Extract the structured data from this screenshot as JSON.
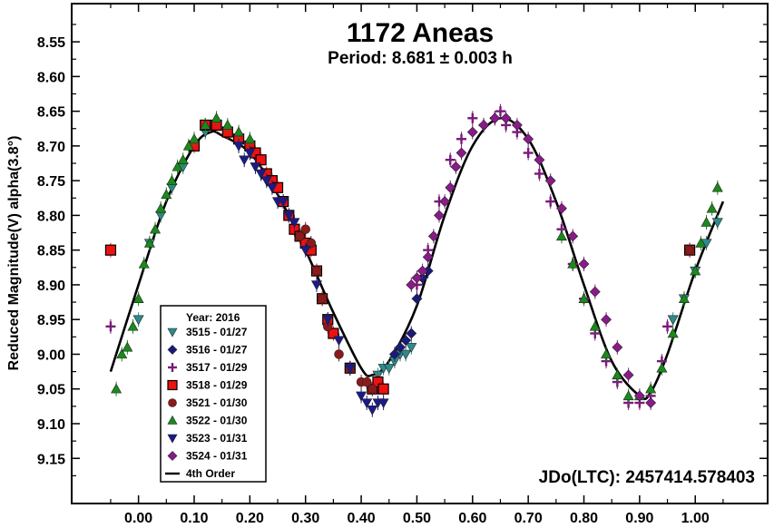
{
  "chart_data": {
    "type": "scatter",
    "title": "1172 Aneas",
    "subtitle": "Period: 8.681 ± 0.003 h",
    "ylabel": "Reduced Magnitude(V) alpha(3.8°)",
    "xlabel": "",
    "annotation": "JDo(LTC): 2457414.578403",
    "xlim": [
      -0.12,
      1.13
    ],
    "ylim": [
      9.215,
      8.495
    ],
    "y_inverted": true,
    "x_ticks": [
      0.0,
      0.1,
      0.2,
      0.3,
      0.4,
      0.5,
      0.6,
      0.7,
      0.8,
      0.9,
      1.0
    ],
    "x_tick_labels": [
      "0.00",
      "0.10",
      "0.20",
      "0.30",
      "0.40",
      "0.50",
      "0.60",
      "0.70",
      "0.80",
      "0.90",
      "1.00"
    ],
    "y_ticks": [
      8.55,
      8.6,
      8.65,
      8.7,
      8.75,
      8.8,
      8.85,
      8.9,
      8.95,
      9.0,
      9.05,
      9.1,
      9.15
    ],
    "y_tick_labels": [
      "8.55",
      "8.60",
      "8.65",
      "8.70",
      "8.75",
      "8.80",
      "8.85",
      "8.90",
      "8.95",
      "9.00",
      "9.05",
      "9.10",
      "9.15"
    ],
    "grid": false,
    "legend": {
      "placement": "bottom-left",
      "title": "Year: 2016",
      "entries": [
        "3515 - 01/27",
        "3516 - 01/27",
        "3517 - 01/29",
        "3518 - 01/29",
        "3521 - 01/30",
        "3522 - 01/30",
        "3523 - 01/31",
        "3524 - 01/31",
        "4th Order"
      ]
    },
    "series": [
      {
        "name": "3515 - 01/27",
        "marker": "triangle-down",
        "color": "#2e8b8b",
        "x": [
          0.0,
          0.02,
          0.04,
          0.06,
          0.08,
          0.1,
          0.12,
          0.14,
          0.16,
          0.18,
          0.2,
          0.43,
          0.44,
          0.45,
          0.46,
          0.47,
          0.48,
          0.49,
          0.96,
          0.98,
          1.0,
          1.02,
          1.04
        ],
        "y": [
          8.95,
          8.84,
          8.8,
          8.76,
          8.73,
          8.7,
          8.68,
          8.67,
          8.68,
          8.69,
          8.7,
          9.03,
          9.02,
          9.02,
          9.01,
          9.0,
          9.0,
          8.99,
          8.95,
          8.92,
          8.88,
          8.84,
          8.81
        ]
      },
      {
        "name": "3516 - 01/27",
        "marker": "diamond",
        "color": "#1a1a7a",
        "x": [
          0.46,
          0.47,
          0.48,
          0.49,
          0.5,
          0.51,
          0.52
        ],
        "y": [
          9.0,
          8.99,
          8.98,
          8.97,
          8.92,
          8.89,
          8.88
        ]
      },
      {
        "name": "3517 - 01/29",
        "marker": "plus",
        "color": "#7a1a7a",
        "x": [
          -0.05,
          0.5,
          0.52,
          0.54,
          0.56,
          0.58,
          0.6,
          0.62,
          0.64,
          0.65,
          0.66,
          0.68,
          0.7,
          0.72,
          0.74,
          0.76,
          0.78,
          0.8,
          0.82,
          0.84,
          0.86,
          0.88,
          0.9,
          0.92,
          0.94,
          0.95
        ],
        "y": [
          8.96,
          8.9,
          8.85,
          8.78,
          8.72,
          8.69,
          8.66,
          8.67,
          8.66,
          8.65,
          8.67,
          8.68,
          8.71,
          8.74,
          8.78,
          8.82,
          8.87,
          8.92,
          8.97,
          9.01,
          9.04,
          9.07,
          9.07,
          9.06,
          9.01,
          8.96
        ]
      },
      {
        "name": "3518 - 01/29",
        "marker": "square",
        "color": "#ee1111",
        "x": [
          -0.05,
          0.1,
          0.12,
          0.14,
          0.16,
          0.18,
          0.2,
          0.21,
          0.22,
          0.23,
          0.24,
          0.25,
          0.26,
          0.27,
          0.28,
          0.29,
          0.3,
          0.31,
          0.32,
          0.33,
          0.34,
          0.35,
          0.38,
          0.42,
          0.43,
          0.44,
          0.99
        ],
        "y": [
          8.85,
          8.7,
          8.67,
          8.67,
          8.68,
          8.69,
          8.7,
          8.71,
          8.72,
          8.74,
          8.75,
          8.76,
          8.78,
          8.8,
          8.82,
          8.83,
          8.84,
          8.85,
          8.88,
          8.92,
          8.95,
          8.97,
          9.02,
          9.05,
          9.04,
          9.05,
          8.85
        ]
      },
      {
        "name": "3521 - 01/30",
        "marker": "circle",
        "color": "#8b1a1a",
        "x": [
          0.29,
          0.3,
          0.31,
          0.32,
          0.33,
          0.34,
          0.36,
          0.38,
          0.4,
          0.41,
          0.42,
          0.99
        ],
        "y": [
          8.83,
          8.82,
          8.84,
          8.88,
          8.92,
          8.96,
          9.0,
          9.02,
          9.04,
          9.04,
          9.05,
          8.85
        ]
      },
      {
        "name": "3522 - 01/30",
        "marker": "triangle-up",
        "color": "#1a8a1a",
        "x": [
          -0.04,
          -0.03,
          -0.02,
          -0.01,
          0.0,
          0.01,
          0.02,
          0.03,
          0.04,
          0.05,
          0.06,
          0.07,
          0.08,
          0.09,
          0.1,
          0.12,
          0.14,
          0.16,
          0.18,
          0.2,
          0.76,
          0.78,
          0.8,
          0.82,
          0.84,
          0.86,
          0.88,
          0.9,
          0.92,
          0.94,
          0.96,
          0.98,
          1.0,
          1.01,
          1.02,
          1.03,
          1.04
        ],
        "y": [
          9.05,
          9.0,
          8.99,
          8.96,
          8.92,
          8.87,
          8.84,
          8.82,
          8.79,
          8.77,
          8.75,
          8.73,
          8.72,
          8.7,
          8.69,
          8.67,
          8.66,
          8.67,
          8.68,
          8.69,
          8.83,
          8.87,
          8.92,
          8.96,
          9.0,
          9.03,
          9.06,
          9.06,
          9.05,
          9.02,
          8.97,
          8.92,
          8.88,
          8.84,
          8.81,
          8.79,
          8.76
        ]
      },
      {
        "name": "3523 - 01/31",
        "marker": "triangle-down",
        "color": "#1a1a8a",
        "x": [
          0.18,
          0.19,
          0.2,
          0.21,
          0.22,
          0.23,
          0.24,
          0.25,
          0.26,
          0.27,
          0.28,
          0.3,
          0.32,
          0.34,
          0.36,
          0.38,
          0.4,
          0.41,
          0.42,
          0.43,
          0.44
        ],
        "y": [
          8.7,
          8.72,
          8.71,
          8.73,
          8.74,
          8.75,
          8.76,
          8.78,
          8.78,
          8.8,
          8.81,
          8.85,
          8.9,
          8.95,
          8.98,
          9.02,
          9.06,
          9.07,
          9.08,
          9.07,
          9.07
        ]
      },
      {
        "name": "3524 - 01/31",
        "marker": "diamond",
        "color": "#8a1a8a",
        "x": [
          0.49,
          0.5,
          0.51,
          0.52,
          0.53,
          0.54,
          0.55,
          0.56,
          0.57,
          0.58,
          0.6,
          0.62,
          0.64,
          0.66,
          0.68,
          0.7,
          0.72,
          0.74,
          0.76,
          0.78,
          0.8,
          0.82,
          0.84,
          0.86,
          0.88,
          0.9,
          0.92
        ],
        "y": [
          8.9,
          8.89,
          8.88,
          8.86,
          8.83,
          8.8,
          8.78,
          8.76,
          8.73,
          8.71,
          8.68,
          8.67,
          8.66,
          8.66,
          8.67,
          8.69,
          8.72,
          8.75,
          8.79,
          8.83,
          8.87,
          8.91,
          8.95,
          8.99,
          9.03,
          9.06,
          9.07
        ]
      }
    ],
    "fit": {
      "name": "4th Order",
      "color": "#000000",
      "x": [
        -0.05,
        0.0,
        0.05,
        0.1,
        0.13,
        0.15,
        0.2,
        0.25,
        0.3,
        0.35,
        0.4,
        0.42,
        0.45,
        0.5,
        0.55,
        0.6,
        0.65,
        0.7,
        0.75,
        0.8,
        0.85,
        0.9,
        0.92,
        0.95,
        1.0,
        1.05
      ],
      "y": [
        9.025,
        8.9,
        8.78,
        8.7,
        8.68,
        8.685,
        8.71,
        8.77,
        8.85,
        8.94,
        9.02,
        9.03,
        9.01,
        8.93,
        8.8,
        8.7,
        8.66,
        8.69,
        8.78,
        8.9,
        9.01,
        9.06,
        9.055,
        9.0,
        8.88,
        8.78
      ]
    },
    "background": "#ffffff",
    "frame_color": "#000000"
  }
}
